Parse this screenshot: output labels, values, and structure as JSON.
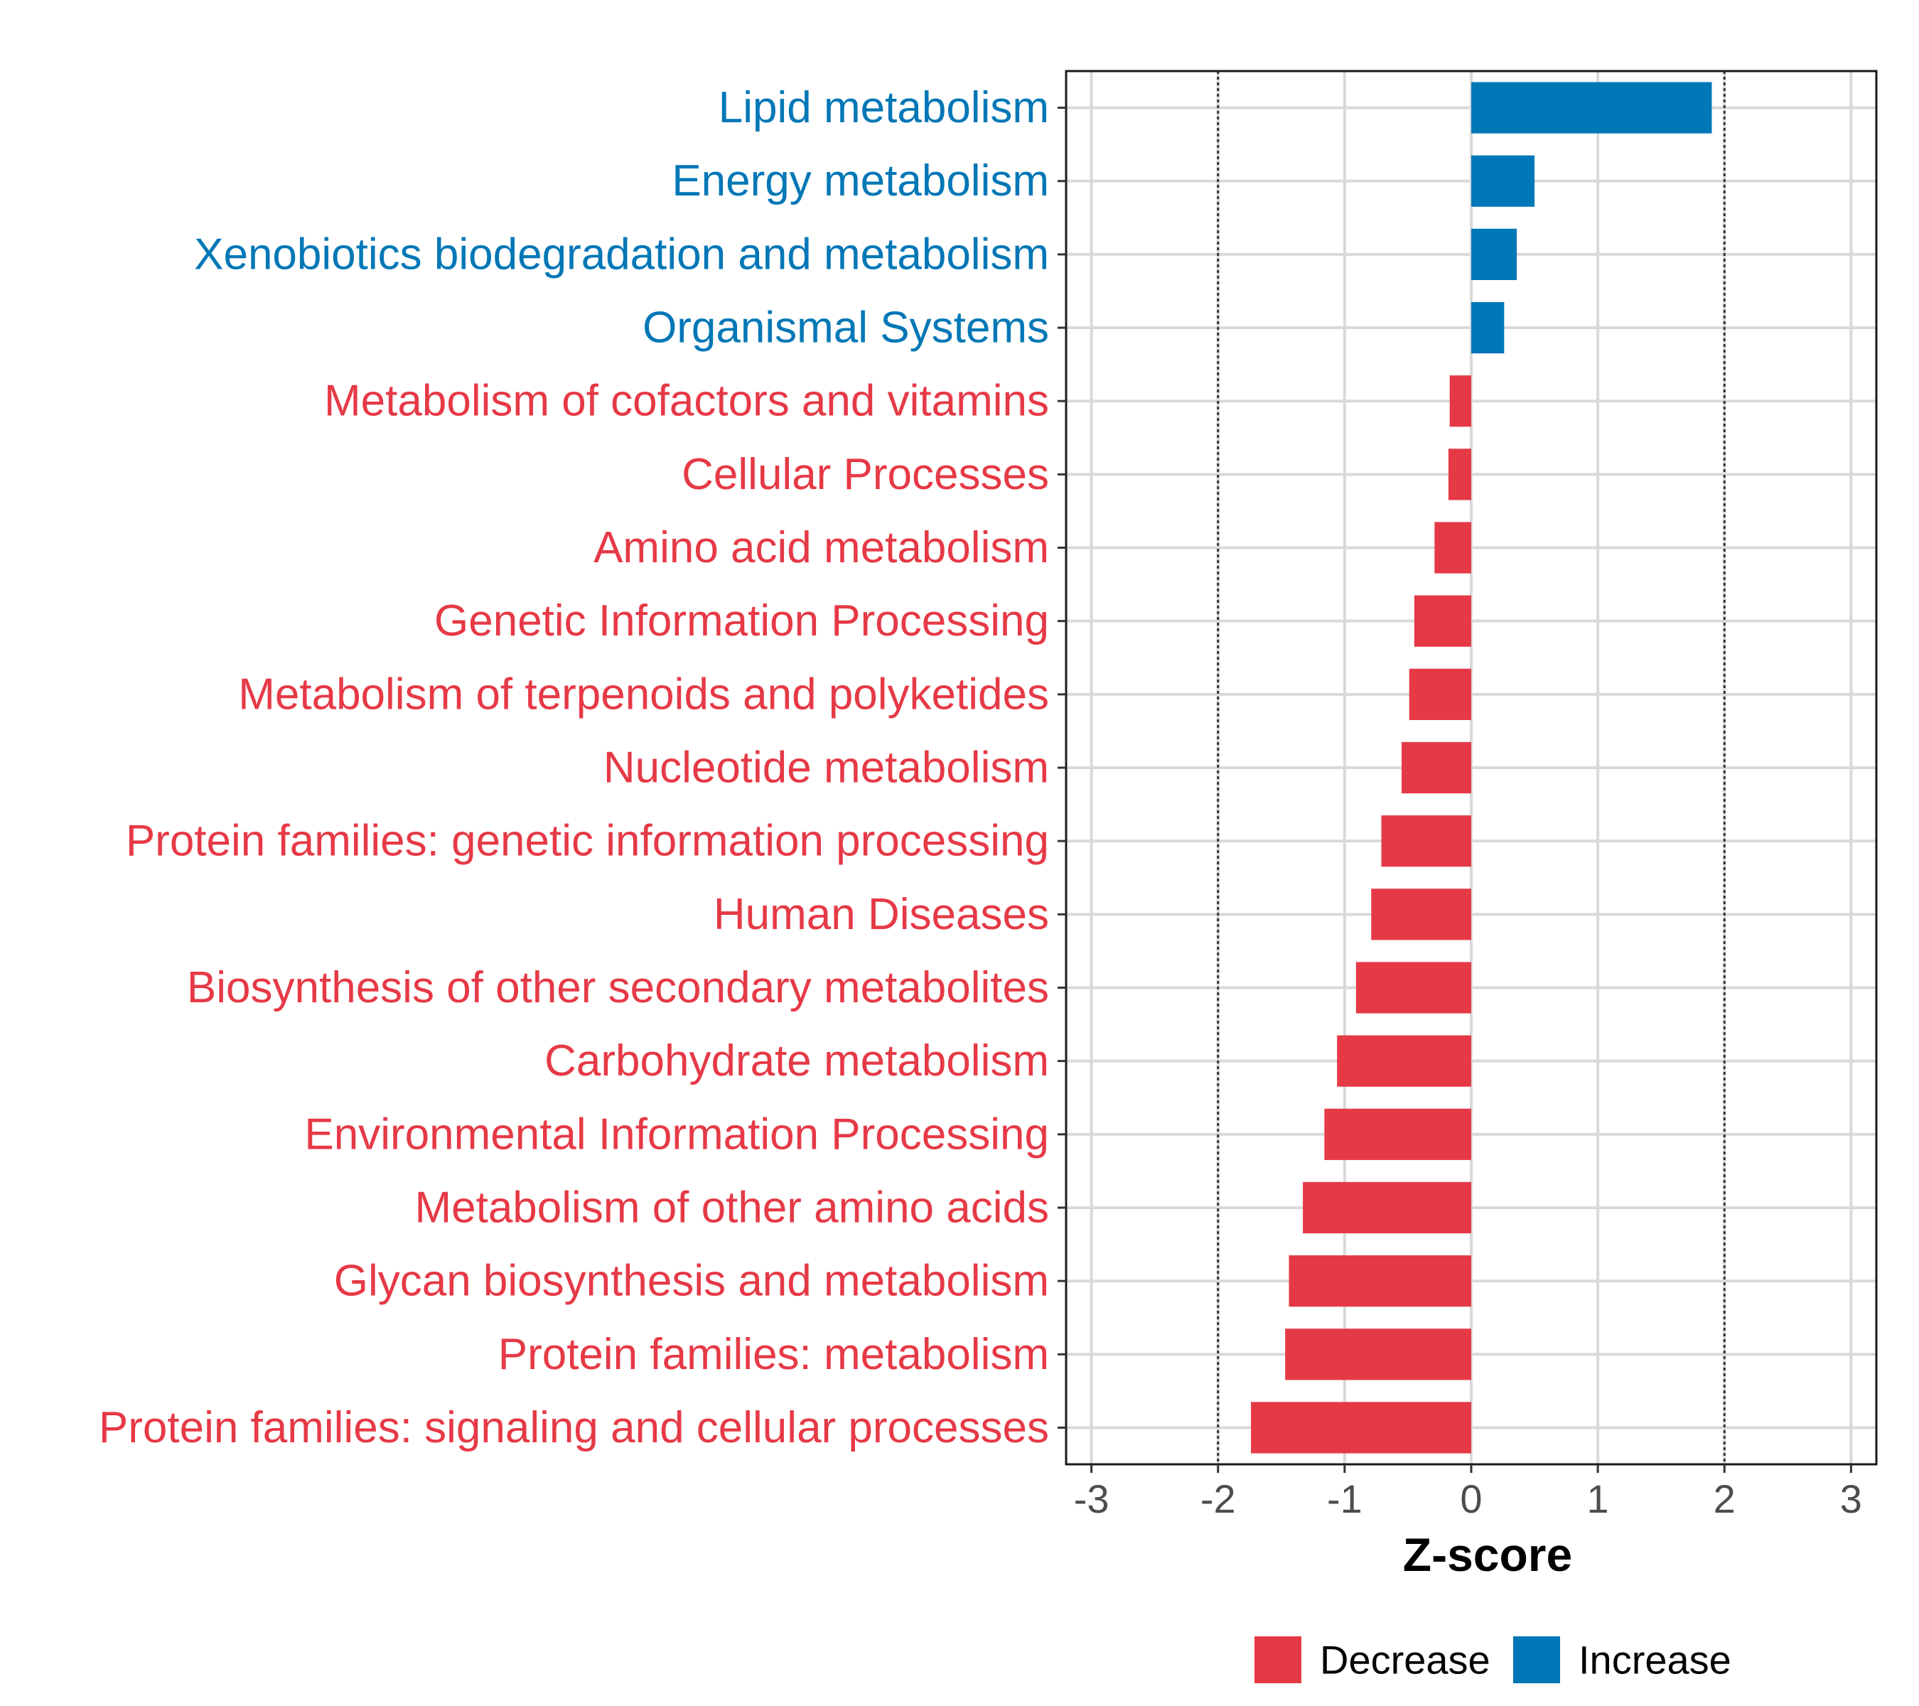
{
  "chart_data": {
    "type": "bar",
    "orientation": "horizontal",
    "title": "",
    "xlabel": "Z-score",
    "ylabel": "",
    "xlim": [
      -3.2,
      3.2
    ],
    "xticks": [
      -3,
      -2,
      -1,
      0,
      1,
      2,
      3
    ],
    "reference_lines": [
      -2,
      2
    ],
    "grid": true,
    "legend_position": "bottom",
    "colors": {
      "Decrease": "#e63946",
      "Increase": "#0077b6"
    },
    "legend": [
      {
        "label": "Decrease",
        "color": "#e63946"
      },
      {
        "label": "Increase",
        "color": "#0077b6"
      }
    ],
    "categories": [
      "Lipid metabolism",
      "Energy metabolism",
      "Xenobiotics biodegradation and metabolism",
      "Organismal Systems",
      "Metabolism of cofactors and vitamins",
      "Cellular Processes",
      "Amino acid metabolism",
      "Genetic Information Processing",
      "Metabolism of terpenoids and polyketides",
      "Nucleotide metabolism",
      "Protein families: genetic information processing",
      "Human Diseases",
      "Biosynthesis of other secondary metabolites",
      "Carbohydrate metabolism",
      "Environmental Information Processing",
      "Metabolism of other amino acids",
      "Glycan biosynthesis and metabolism",
      "Protein families: metabolism",
      "Protein families: signaling and cellular processes"
    ],
    "values": [
      1.9,
      0.5,
      0.36,
      0.26,
      -0.17,
      -0.18,
      -0.29,
      -0.45,
      -0.49,
      -0.55,
      -0.71,
      -0.79,
      -0.91,
      -1.06,
      -1.16,
      -1.33,
      -1.44,
      -1.47,
      -1.74
    ],
    "groups": [
      "Increase",
      "Increase",
      "Increase",
      "Increase",
      "Decrease",
      "Decrease",
      "Decrease",
      "Decrease",
      "Decrease",
      "Decrease",
      "Decrease",
      "Decrease",
      "Decrease",
      "Decrease",
      "Decrease",
      "Decrease",
      "Decrease",
      "Decrease",
      "Decrease"
    ]
  }
}
